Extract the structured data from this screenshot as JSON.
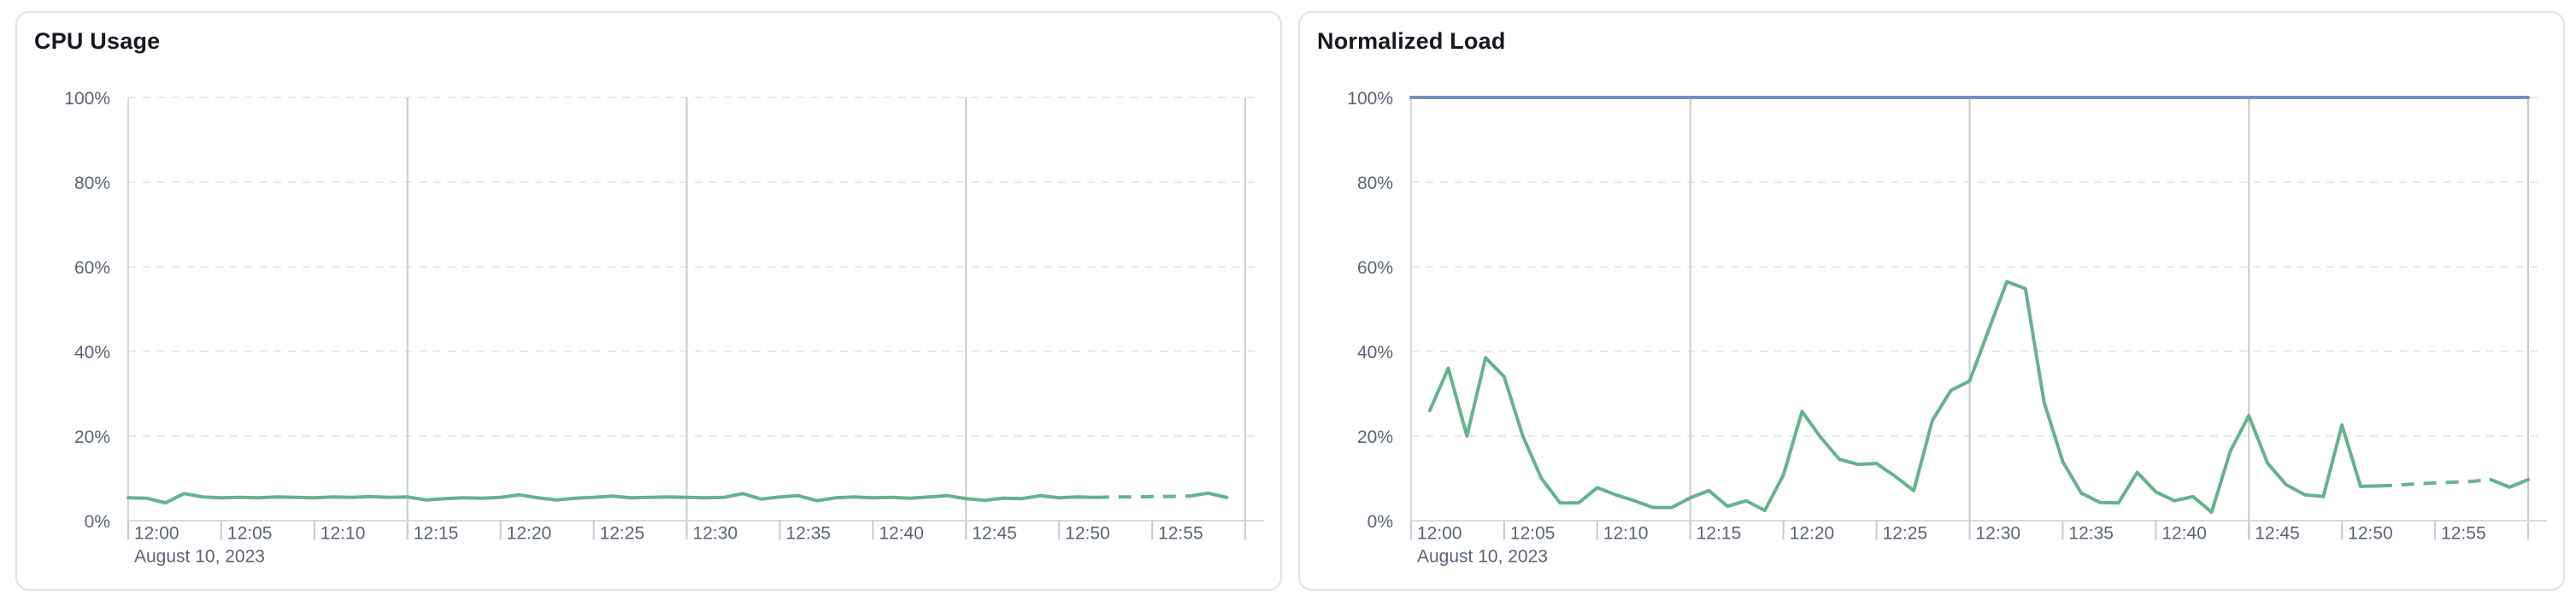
{
  "page": {
    "background": "#ffffff"
  },
  "colors": {
    "card_border": "#dfe3ed",
    "title": "#16191f",
    "axis_label": "#5a6474",
    "grid_dashed": "#e7eaf2",
    "grid_solid": "#c6cad2",
    "axis_line": "#d6dae1",
    "plot_left_border": "#d3d7df",
    "cpu_line": "#66b28e",
    "limit_line": "#7691c0"
  },
  "chart_data": [
    {
      "type": "line",
      "title": "CPU Usage",
      "xlabel": "",
      "ylabel": "",
      "date_label": "August 10, 2023",
      "x_unit": "minutes after 12:00 on August 10, 2023",
      "xlim": [
        0,
        60
      ],
      "ylim": [
        0,
        100
      ],
      "grid": "horizontal dashed every 20%, vertical solid every 15 min",
      "legend": "none",
      "x_tick_step_minutes": 5,
      "x_tick_labels": [
        "12:00",
        "12:05",
        "12:10",
        "12:15",
        "12:20",
        "12:25",
        "12:30",
        "12:35",
        "12:40",
        "12:45",
        "12:50",
        "12:55"
      ],
      "y_tick_labels": [
        "0%",
        "20%",
        "40%",
        "60%",
        "80%",
        "100%"
      ],
      "series": [
        {
          "name": "cpu-usage",
          "color": "#66b28e",
          "dashed_from_minute": 52,
          "dashed_to_minute": 57,
          "points": [
            [
              0,
              5.4
            ],
            [
              1,
              5.3
            ],
            [
              2,
              4.2
            ],
            [
              3,
              6.4
            ],
            [
              4,
              5.6
            ],
            [
              5,
              5.4
            ],
            [
              6,
              5.5
            ],
            [
              7,
              5.4
            ],
            [
              8,
              5.6
            ],
            [
              9,
              5.5
            ],
            [
              10,
              5.4
            ],
            [
              11,
              5.6
            ],
            [
              12,
              5.5
            ],
            [
              13,
              5.7
            ],
            [
              14,
              5.5
            ],
            [
              15,
              5.6
            ],
            [
              16,
              4.9
            ],
            [
              17,
              5.2
            ],
            [
              18,
              5.4
            ],
            [
              19,
              5.3
            ],
            [
              20,
              5.5
            ],
            [
              21,
              6.1
            ],
            [
              22,
              5.4
            ],
            [
              23,
              4.9
            ],
            [
              24,
              5.3
            ],
            [
              25,
              5.5
            ],
            [
              26,
              5.8
            ],
            [
              27,
              5.4
            ],
            [
              28,
              5.5
            ],
            [
              29,
              5.6
            ],
            [
              30,
              5.5
            ],
            [
              31,
              5.4
            ],
            [
              32,
              5.5
            ],
            [
              33,
              6.4
            ],
            [
              34,
              5.1
            ],
            [
              35,
              5.6
            ],
            [
              36,
              5.9
            ],
            [
              37,
              4.7
            ],
            [
              38,
              5.4
            ],
            [
              39,
              5.6
            ],
            [
              40,
              5.4
            ],
            [
              41,
              5.5
            ],
            [
              42,
              5.3
            ],
            [
              43,
              5.6
            ],
            [
              44,
              5.9
            ],
            [
              45,
              5.2
            ],
            [
              46,
              4.8
            ],
            [
              47,
              5.3
            ],
            [
              48,
              5.2
            ],
            [
              49,
              5.9
            ],
            [
              50,
              5.4
            ],
            [
              51,
              5.6
            ],
            [
              52,
              5.5
            ],
            [
              53,
              5.6
            ],
            [
              54,
              5.6
            ],
            [
              55,
              5.7
            ],
            [
              56,
              5.7
            ],
            [
              57,
              5.8
            ],
            [
              58,
              6.5
            ],
            [
              59,
              5.5
            ]
          ]
        }
      ]
    },
    {
      "type": "line",
      "title": "Normalized Load",
      "xlabel": "",
      "ylabel": "",
      "date_label": "August 10, 2023",
      "x_unit": "minutes after 12:00 on August 10, 2023",
      "xlim": [
        0,
        60
      ],
      "ylim": [
        0,
        100
      ],
      "grid": "horizontal dashed every 20%, vertical solid every 15 min",
      "legend": "none",
      "x_tick_step_minutes": 5,
      "x_tick_labels": [
        "12:00",
        "12:05",
        "12:10",
        "12:15",
        "12:20",
        "12:25",
        "12:30",
        "12:35",
        "12:40",
        "12:45",
        "12:50",
        "12:55"
      ],
      "y_tick_labels": [
        "0%",
        "20%",
        "40%",
        "60%",
        "80%",
        "100%"
      ],
      "series": [
        {
          "name": "normalized-load",
          "color": "#66b28e",
          "dashed_from_minute": 52,
          "dashed_to_minute": 58,
          "points": [
            [
              1,
              26
            ],
            [
              2,
              36
            ],
            [
              3,
              20
            ],
            [
              4,
              38.5
            ],
            [
              5,
              34
            ],
            [
              6,
              20
            ],
            [
              7,
              10
            ],
            [
              8,
              4.2
            ],
            [
              9,
              4.2
            ],
            [
              10,
              7.8
            ],
            [
              11,
              6.1
            ],
            [
              12,
              4.7
            ],
            [
              13,
              3.1
            ],
            [
              14,
              3.1
            ],
            [
              15,
              5.4
            ],
            [
              16,
              7.1
            ],
            [
              17,
              3.4
            ],
            [
              18,
              4.7
            ],
            [
              19,
              2.4
            ],
            [
              20,
              10.8
            ],
            [
              21,
              25.8
            ],
            [
              22,
              19.7
            ],
            [
              23,
              14.5
            ],
            [
              24,
              13.3
            ],
            [
              25,
              13.5
            ],
            [
              26,
              10.5
            ],
            [
              27,
              7.1
            ],
            [
              28,
              23.7
            ],
            [
              29,
              30.8
            ],
            [
              30,
              33
            ],
            [
              31,
              44.8
            ],
            [
              32,
              56.5
            ],
            [
              33,
              54.8
            ],
            [
              34,
              28
            ],
            [
              35,
              14
            ],
            [
              36,
              6.5
            ],
            [
              37,
              4.3
            ],
            [
              38,
              4.2
            ],
            [
              39,
              11.4
            ],
            [
              40,
              6.8
            ],
            [
              41,
              4.7
            ],
            [
              42,
              5.7
            ],
            [
              43,
              2.0
            ],
            [
              44,
              16.4
            ],
            [
              45,
              24.8
            ],
            [
              46,
              13.6
            ],
            [
              47,
              8.5
            ],
            [
              48,
              6.1
            ],
            [
              49,
              5.7
            ],
            [
              50,
              22.6
            ],
            [
              51,
              8.1
            ],
            [
              52,
              8.2
            ],
            [
              53,
              8.4
            ],
            [
              54,
              8.7
            ],
            [
              55,
              8.9
            ],
            [
              56,
              9.1
            ],
            [
              57,
              9.3
            ],
            [
              58,
              9.7
            ],
            [
              59,
              7.9
            ],
            [
              60,
              9.7
            ]
          ]
        },
        {
          "name": "load-limit-100-percent",
          "color": "#7691c0",
          "dashed_from_minute": null,
          "dashed_to_minute": null,
          "points": [
            [
              0,
              100
            ],
            [
              60,
              100
            ]
          ]
        }
      ]
    }
  ]
}
